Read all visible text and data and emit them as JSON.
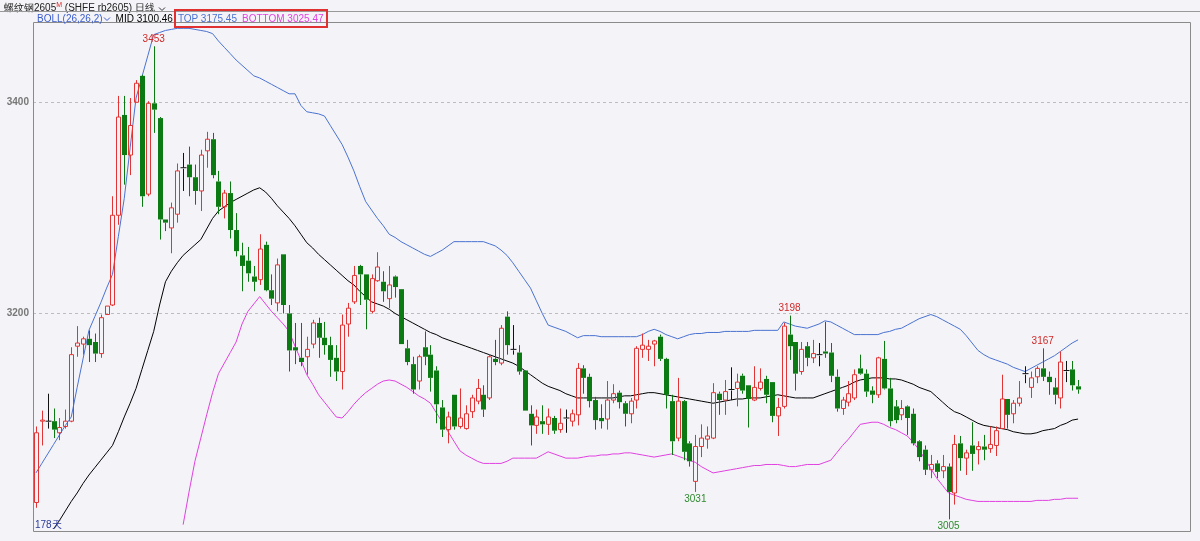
{
  "chart_data": {
    "type": "candlestick",
    "title": "螺纹钢2605$^{M}$ (SHFE rb2605) 日线",
    "legend_title": "BOLL(26,26,2)",
    "legend": "top left",
    "grid": "y",
    "categories": [
      null,
      null,
      null,
      null,
      null,
      null,
      null,
      null,
      null,
      null,
      null,
      null,
      null,
      null,
      null,
      null,
      null,
      null,
      null,
      null,
      null,
      null,
      null,
      null,
      null,
      null,
      null,
      null,
      null,
      null,
      null,
      null,
      null,
      null,
      null,
      null,
      null,
      null,
      null,
      null,
      null,
      null,
      null,
      null,
      null,
      null,
      null,
      null,
      null,
      null,
      null,
      null,
      null,
      null,
      null,
      null,
      null,
      null,
      null,
      null,
      null,
      null,
      null,
      null,
      null,
      null,
      null,
      null,
      null,
      null,
      null,
      null,
      null,
      null,
      null,
      null,
      null,
      null,
      null,
      null,
      null,
      null,
      null,
      null,
      null,
      null,
      null,
      null,
      null,
      null,
      null,
      null,
      null,
      null,
      null,
      null,
      null,
      null,
      null,
      null,
      null,
      null,
      null,
      null,
      null,
      null,
      null,
      null,
      null,
      null,
      null,
      null,
      null,
      null,
      null,
      null,
      null,
      null,
      null,
      null,
      null,
      null,
      null,
      null,
      null,
      null,
      null,
      null,
      null,
      null,
      null,
      null,
      null,
      null,
      null,
      null,
      null,
      null,
      null,
      null,
      null,
      null,
      null,
      null,
      null,
      null,
      null,
      null,
      null,
      null,
      null,
      null,
      null,
      null,
      null,
      null,
      null,
      null,
      null,
      null,
      null,
      null,
      null,
      null,
      null,
      null,
      null,
      null,
      null,
      null,
      null,
      null,
      null,
      null,
      null,
      null,
      null,
      null
    ],
    "ylim": [
      2994,
      3476
    ],
    "yticks": [
      3200,
      3400
    ],
    "ohlc": [
      [
        3021,
        3093,
        3016,
        3087
      ],
      [
        3098,
        3108,
        3075,
        3099
      ],
      [
        3098,
        3124,
        3091,
        3098
      ],
      [
        3098,
        3110,
        3082,
        3090
      ],
      [
        3087,
        3101,
        3080,
        3092
      ],
      [
        3093,
        3109,
        3091,
        3098
      ],
      [
        3098,
        3168,
        3097,
        3161
      ],
      [
        3169,
        3188,
        3159,
        3172
      ],
      [
        3171,
        3178,
        3161,
        3176
      ],
      [
        3176,
        3184,
        3154,
        3170
      ],
      [
        3173,
        3181,
        3154,
        3162
      ],
      [
        3162,
        3199,
        3158,
        3196
      ],
      [
        3199,
        3207,
        3199,
        3207
      ],
      [
        3208,
        3311,
        3207,
        3293
      ],
      [
        3293,
        3406,
        3284,
        3386
      ],
      [
        3388,
        3406,
        3322,
        3350
      ],
      [
        3350,
        3404,
        3331,
        3378
      ],
      [
        3400,
        3421,
        3400,
        3418
      ],
      [
        3425,
        3426,
        3301,
        3311
      ],
      [
        3313,
        3401,
        3311,
        3399
      ],
      [
        3399,
        3453,
        3371,
        3393
      ],
      [
        3385,
        3386,
        3270,
        3289
      ],
      [
        3289,
        3289,
        3278,
        3286
      ],
      [
        3281,
        3305,
        3257,
        3300
      ],
      [
        3294,
        3342,
        3286,
        3335
      ],
      [
        3338,
        3352,
        3316,
        3338
      ],
      [
        3341,
        3358,
        3311,
        3329
      ],
      [
        3329,
        3341,
        3303,
        3316
      ],
      [
        3316,
        3355,
        3297,
        3350
      ],
      [
        3354,
        3372,
        3338,
        3365
      ],
      [
        3365,
        3371,
        3328,
        3331
      ],
      [
        3325,
        3335,
        3294,
        3301
      ],
      [
        3301,
        3317,
        3290,
        3314
      ],
      [
        3314,
        3325,
        3271,
        3279
      ],
      [
        3279,
        3295,
        3254,
        3259
      ],
      [
        3255,
        3267,
        3221,
        3245
      ],
      [
        3250,
        3263,
        3230,
        3238
      ],
      [
        3235,
        3245,
        3221,
        3230
      ],
      [
        3232,
        3275,
        3227,
        3261
      ],
      [
        3265,
        3268,
        3221,
        3222
      ],
      [
        3222,
        3237,
        3208,
        3214
      ],
      [
        3210,
        3252,
        3202,
        3246
      ],
      [
        3256,
        3256,
        3200,
        3208
      ],
      [
        3200,
        3208,
        3145,
        3165
      ],
      [
        3168,
        3191,
        3152,
        3165
      ],
      [
        3158,
        3191,
        3150,
        3154
      ],
      [
        3159,
        3178,
        3142,
        3166
      ],
      [
        3171,
        3194,
        3167,
        3191
      ],
      [
        3191,
        3196,
        3158,
        3177
      ],
      [
        3177,
        3192,
        3161,
        3170
      ],
      [
        3170,
        3178,
        3140,
        3156
      ],
      [
        3158,
        3170,
        3136,
        3145
      ],
      [
        3145,
        3199,
        3128,
        3189
      ],
      [
        3190,
        3210,
        3178,
        3205
      ],
      [
        3211,
        3245,
        3209,
        3236
      ],
      [
        3245,
        3246,
        3208,
        3237
      ],
      [
        3237,
        3237,
        3185,
        3213
      ],
      [
        3202,
        3237,
        3200,
        3233
      ],
      [
        3231,
        3258,
        3230,
        3244
      ],
      [
        3230,
        3240,
        3211,
        3221
      ],
      [
        3214,
        3245,
        3205,
        3227
      ],
      [
        3235,
        3236,
        3215,
        3225
      ],
      [
        3223,
        3223,
        3171,
        3171
      ],
      [
        3167,
        3175,
        3151,
        3154
      ],
      [
        3152,
        3159,
        3124,
        3128
      ],
      [
        3136,
        3161,
        3128,
        3159
      ],
      [
        3168,
        3183,
        3151,
        3159
      ],
      [
        3161,
        3170,
        3126,
        3139
      ],
      [
        3146,
        3150,
        3096,
        3114
      ],
      [
        3111,
        3118,
        3083,
        3090
      ],
      [
        3090,
        3107,
        3077,
        3102
      ],
      [
        3123,
        3123,
        3090,
        3093
      ],
      [
        3093,
        3129,
        3091,
        3101
      ],
      [
        3091,
        3113,
        3090,
        3105
      ],
      [
        3107,
        3123,
        3101,
        3120
      ],
      [
        3117,
        3138,
        3114,
        3129
      ],
      [
        3123,
        3132,
        3102,
        3109
      ],
      [
        3120,
        3161,
        3118,
        3159
      ],
      [
        3157,
        3175,
        3151,
        3154
      ],
      [
        3153,
        3189,
        3151,
        3186
      ],
      [
        3197,
        3202,
        3161,
        3170
      ],
      [
        3166,
        3189,
        3161,
        3166
      ],
      [
        3163,
        3170,
        3142,
        3145
      ],
      [
        3146,
        3146,
        3108,
        3108
      ],
      [
        3105,
        3113,
        3075,
        3094
      ],
      [
        3094,
        3109,
        3086,
        3102
      ],
      [
        3098,
        3113,
        3086,
        3095
      ],
      [
        3095,
        3110,
        3085,
        3102
      ],
      [
        3101,
        3103,
        3086,
        3089
      ],
      [
        3090,
        3110,
        3087,
        3096
      ],
      [
        3101,
        3109,
        3087,
        3101
      ],
      [
        3098,
        3109,
        3093,
        3105
      ],
      [
        3104,
        3153,
        3094,
        3148
      ],
      [
        3148,
        3151,
        3124,
        3139
      ],
      [
        3140,
        3143,
        3111,
        3117
      ],
      [
        3118,
        3121,
        3090,
        3099
      ],
      [
        3101,
        3114,
        3091,
        3098
      ],
      [
        3100,
        3136,
        3090,
        3118
      ],
      [
        3118,
        3133,
        3115,
        3124
      ],
      [
        3125,
        3127,
        3110,
        3116
      ],
      [
        3115,
        3117,
        3093,
        3105
      ],
      [
        3105,
        3120,
        3096,
        3117
      ],
      [
        3118,
        3169,
        3110,
        3167
      ],
      [
        3166,
        3181,
        3158,
        3170
      ],
      [
        3166,
        3175,
        3155,
        3169
      ],
      [
        3171,
        3175,
        3150,
        3174
      ],
      [
        3178,
        3180,
        3155,
        3157
      ],
      [
        3157,
        3158,
        3110,
        3123
      ],
      [
        3117,
        3123,
        3066,
        3079
      ],
      [
        3082,
        3139,
        3079,
        3117
      ],
      [
        3117,
        3118,
        3061,
        3069
      ],
      [
        3077,
        3079,
        3055,
        3060
      ],
      [
        3041,
        3085,
        3031,
        3074
      ],
      [
        3074,
        3095,
        3064,
        3082
      ],
      [
        3081,
        3093,
        3072,
        3084
      ],
      [
        3082,
        3134,
        3081,
        3125
      ],
      [
        3124,
        3126,
        3104,
        3118
      ],
      [
        3118,
        3137,
        3104,
        3126
      ],
      [
        3128,
        3149,
        3118,
        3128
      ],
      [
        3129,
        3143,
        3112,
        3135
      ],
      [
        3141,
        3143,
        3124,
        3127
      ],
      [
        3132,
        3132,
        3092,
        3119
      ],
      [
        3118,
        3150,
        3117,
        3130
      ],
      [
        3129,
        3148,
        3127,
        3135
      ],
      [
        3138,
        3141,
        3115,
        3123
      ],
      [
        3135,
        3135,
        3097,
        3103
      ],
      [
        3103,
        3120,
        3084,
        3111
      ],
      [
        3112,
        3191,
        3110,
        3188
      ],
      [
        3180,
        3198,
        3156,
        3169
      ],
      [
        3173,
        3173,
        3127,
        3143
      ],
      [
        3145,
        3173,
        3142,
        3166
      ],
      [
        3169,
        3173,
        3150,
        3158
      ],
      [
        3158,
        3175,
        3153,
        3162
      ],
      [
        3161,
        3172,
        3150,
        3161
      ],
      [
        3164,
        3192,
        3158,
        3162
      ],
      [
        3163,
        3172,
        3135,
        3141
      ],
      [
        3140,
        3147,
        3107,
        3110
      ],
      [
        3110,
        3121,
        3104,
        3118
      ],
      [
        3116,
        3136,
        3112,
        3124
      ],
      [
        3120,
        3147,
        3118,
        3142
      ],
      [
        3148,
        3161,
        3142,
        3143
      ],
      [
        3143,
        3147,
        3121,
        3126
      ],
      [
        3127,
        3131,
        3115,
        3123
      ],
      [
        3123,
        3159,
        3120,
        3158
      ],
      [
        3157,
        3174,
        3128,
        3129
      ],
      [
        3129,
        3139,
        3093,
        3098
      ],
      [
        3112,
        3118,
        3096,
        3099
      ],
      [
        3104,
        3118,
        3099,
        3110
      ],
      [
        3112,
        3113,
        3085,
        3101
      ],
      [
        3105,
        3110,
        3075,
        3077
      ],
      [
        3079,
        3080,
        3060,
        3064
      ],
      [
        3071,
        3075,
        3047,
        3052
      ],
      [
        3052,
        3066,
        3044,
        3057
      ],
      [
        3058,
        3061,
        3044,
        3050
      ],
      [
        3051,
        3066,
        3044,
        3055
      ],
      [
        3055,
        3058,
        3005,
        3031
      ],
      [
        3030,
        3085,
        3019,
        3076
      ],
      [
        3077,
        3084,
        3051,
        3063
      ],
      [
        3063,
        3071,
        3047,
        3068
      ],
      [
        3075,
        3097,
        3051,
        3067
      ],
      [
        3071,
        3079,
        3057,
        3074
      ],
      [
        3074,
        3085,
        3061,
        3071
      ],
      [
        3072,
        3093,
        3068,
        3076
      ],
      [
        3075,
        3093,
        3065,
        3089
      ],
      [
        3091,
        3142,
        3091,
        3119
      ],
      [
        3119,
        3119,
        3091,
        3104
      ],
      [
        3105,
        3118,
        3096,
        3115
      ],
      [
        3115,
        3136,
        3112,
        3120
      ],
      [
        3143,
        3150,
        3134,
        3143
      ],
      [
        3130,
        3145,
        3120,
        3139
      ],
      [
        3140,
        3150,
        3134,
        3148
      ],
      [
        3148,
        3167,
        3136,
        3140
      ],
      [
        3140,
        3145,
        3123,
        3135
      ],
      [
        3130,
        3139,
        3114,
        3123
      ],
      [
        3120,
        3164,
        3110,
        3154
      ],
      [
        3146,
        3155,
        3135,
        3146
      ],
      [
        3147,
        3155,
        3127,
        3132
      ],
      [
        3131,
        3137,
        3124,
        3128
      ]
    ],
    "series": [
      {
        "type": "line",
        "name": "MID 3100.46",
        "color": "#000000",
        "values": [
          null,
          null,
          null,
          2996,
          3004,
          3013,
          3022,
          3030,
          3039,
          3047,
          3054,
          3061,
          3068,
          3075,
          3088,
          3102,
          3115,
          3129,
          3147,
          3165,
          3183,
          3208,
          3230,
          3240,
          3248,
          3255,
          3260,
          3265,
          3270,
          3280,
          3290,
          3297,
          3301,
          3305,
          3308,
          3311,
          3314,
          3317,
          3319,
          3315,
          3309,
          3302,
          3296,
          3290,
          3283,
          3275,
          3267,
          3262,
          3256,
          3251,
          3246,
          3241,
          3236,
          3231,
          3227,
          3221,
          3216,
          3211,
          3209,
          3207,
          3204,
          3200,
          3197,
          3194,
          3191,
          3188,
          3185,
          3182,
          3180,
          3177,
          3175,
          3173,
          3171,
          3169,
          3167,
          3165,
          3163,
          3161,
          3159,
          3157,
          3155,
          3153,
          3150,
          3146,
          3142,
          3138,
          3134,
          3131,
          3129,
          3127,
          3124,
          3122,
          3120,
          3120,
          3120,
          3120,
          3120,
          3120,
          3120,
          3121,
          3122,
          3122,
          3123,
          3124,
          3125,
          3125,
          3124,
          3123,
          3122,
          3121,
          3120,
          3119,
          3118,
          3117,
          3116,
          3115,
          3116,
          3117,
          3118,
          3119,
          3119,
          3120,
          3120,
          3120,
          3121,
          3122,
          3123,
          3122,
          3121,
          3120,
          3120,
          3120,
          3120,
          3122,
          3124,
          3126,
          3128,
          3130,
          3132,
          3135,
          3137,
          3138,
          3139,
          3139,
          3139,
          3138,
          3138,
          3137,
          3135,
          3133,
          3130,
          3128,
          3126,
          3121,
          3116,
          3111,
          3107,
          3105,
          3102,
          3099,
          3096,
          3094,
          3093,
          3092,
          3091,
          3090,
          3088,
          3087,
          3086,
          3086,
          3087,
          3089,
          3090,
          3091,
          3094,
          3096,
          3099,
          3100
        ]
      },
      {
        "type": "line",
        "name": "TOP 3175.45",
        "color": "#4a72d0",
        "values": [
          3049,
          3058,
          3067,
          3076,
          3085,
          3094,
          3102,
          3130,
          3157,
          3184,
          3197,
          3210,
          3224,
          3237,
          3273,
          3309,
          3357,
          3404,
          3424,
          3444,
          3464,
          3466,
          3468,
          3469,
          3470,
          3470,
          3470,
          3469,
          3468,
          3467,
          3465,
          3458,
          3452,
          3446,
          3440,
          3435,
          3430,
          3425,
          3423,
          3420,
          3417,
          3414,
          3411,
          3408,
          3408,
          3397,
          3391,
          3390,
          3389,
          3387,
          3378,
          3369,
          3360,
          3348,
          3335,
          3320,
          3306,
          3298,
          3290,
          3283,
          3275,
          3272,
          3268,
          3265,
          3262,
          3259,
          3256,
          3254,
          3257,
          3260,
          3264,
          3268,
          3268,
          3268,
          3268,
          3268,
          3268,
          3266,
          3264,
          3260,
          3255,
          3248,
          3240,
          3232,
          3224,
          3212,
          3200,
          3189,
          3187,
          3185,
          3183,
          3180,
          3177,
          3179,
          3179,
          3179,
          3178,
          3178,
          3178,
          3178,
          3178,
          3178,
          3178,
          3180,
          3183,
          3185,
          3183,
          3180,
          3178,
          3176,
          3178,
          3180,
          3181,
          3181,
          3182,
          3182,
          3182,
          3183,
          3183,
          3183,
          3183,
          3183,
          3184,
          3184,
          3184,
          3184,
          3184,
          3192,
          3190,
          3188,
          3187,
          3186,
          3188,
          3190,
          3193,
          3192,
          3189,
          3186,
          3183,
          3180,
          3180,
          3180,
          3180,
          3180,
          3182,
          3183,
          3185,
          3186,
          3189,
          3192,
          3195,
          3197,
          3199,
          3197,
          3194,
          3191,
          3188,
          3185,
          3179,
          3172,
          3165,
          3161,
          3158,
          3156,
          3154,
          3152,
          3149,
          3147,
          3145,
          3148,
          3151,
          3154,
          3157,
          3160,
          3164,
          3168,
          3172,
          3175
        ]
      },
      {
        "type": "line",
        "name": "BOTTOM 3025.47",
        "color": "#e040e0",
        "values": [
          null,
          null,
          null,
          null,
          null,
          null,
          null,
          null,
          null,
          null,
          null,
          null,
          null,
          null,
          null,
          null,
          null,
          null,
          null,
          null,
          null,
          null,
          null,
          null,
          null,
          3000,
          3031,
          3060,
          3082,
          3104,
          3125,
          3143,
          3153,
          3163,
          3173,
          3190,
          3202,
          3209,
          3216,
          3209,
          3202,
          3196,
          3190,
          3183,
          3169,
          3156,
          3142,
          3133,
          3123,
          3116,
          3109,
          3102,
          3101,
          3107,
          3114,
          3120,
          3125,
          3129,
          3133,
          3136,
          3137,
          3136,
          3133,
          3130,
          3126,
          3122,
          3119,
          3115,
          3106,
          3097,
          3088,
          3079,
          3070,
          3066,
          3063,
          3060,
          3058,
          3058,
          3058,
          3058,
          3060,
          3063,
          3063,
          3063,
          3063,
          3063,
          3066,
          3069,
          3067,
          3065,
          3063,
          3063,
          3063,
          3064,
          3065,
          3065,
          3066,
          3066,
          3067,
          3067,
          3068,
          3068,
          3067,
          3066,
          3065,
          3064,
          3065,
          3066,
          3067,
          3065,
          3063,
          3061,
          3059,
          3055,
          3052,
          3049,
          3050,
          3051,
          3052,
          3053,
          3054,
          3055,
          3056,
          3056,
          3057,
          3057,
          3057,
          3056,
          3055,
          3055,
          3056,
          3057,
          3057,
          3057,
          3059,
          3061,
          3068,
          3075,
          3081,
          3088,
          3095,
          3096,
          3097,
          3097,
          3095,
          3092,
          3090,
          3087,
          3084,
          3078,
          3071,
          3062,
          3053,
          3044,
          3037,
          3030,
          3028,
          3026,
          3024,
          3023,
          3022,
          3022,
          3022,
          3022,
          3022,
          3022,
          3022,
          3022,
          3022,
          3022,
          3023,
          3023,
          3023,
          3024,
          3024,
          3025,
          3025,
          3025
        ]
      }
    ],
    "annotations": [
      {
        "text": "3453",
        "y": 3453
      },
      {
        "text": "3198",
        "y": 3198
      },
      {
        "text": "3031",
        "y": 3031
      },
      {
        "text": "3167",
        "y": 3167
      },
      {
        "text": "3005",
        "y": 3005
      },
      "178天"
    ]
  }
}
